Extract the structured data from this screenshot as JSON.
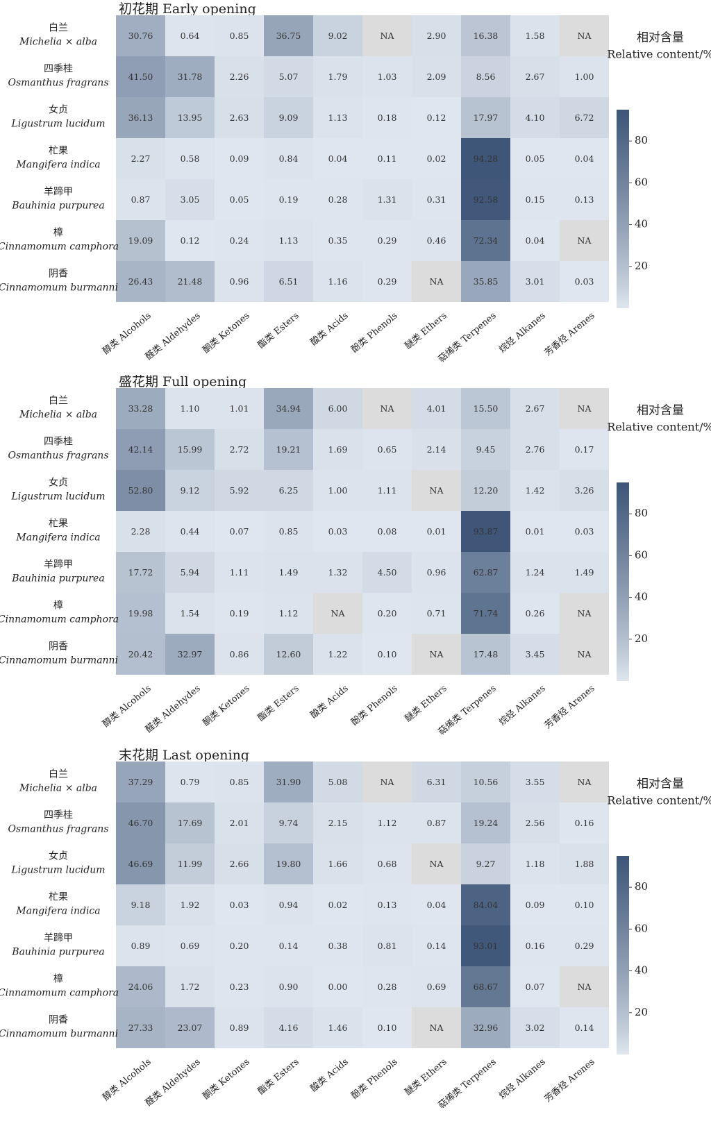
{
  "chart_data": [
    {
      "type": "heatmap",
      "title": "初花期 Early opening",
      "colorbar_title_cn": "相对含量",
      "colorbar_title_en": "Relative content/%",
      "colorbar_ticks": [
        20,
        40,
        60,
        80
      ],
      "colorbar_range": [
        0,
        95
      ],
      "rows_cn": [
        "白兰",
        "四季桂",
        "女贞",
        "杧果",
        "羊蹄甲",
        "樟",
        "阴香"
      ],
      "rows_latin": [
        "Michelia × alba",
        "Osmanthus fragrans",
        "Ligustrum lucidum",
        "Mangifera indica",
        "Bauhinia purpurea",
        "Cinnamomum camphora",
        "Cinnamomum burmanni"
      ],
      "columns": [
        "醇类 Alcohols",
        "醛类 Aldehydes",
        "酮类 Ketones",
        "酯类 Esters",
        "酸类 Acids",
        "酚类 Phenols",
        "醚类 Ethers",
        "萜烯类 Terpenes",
        "烷烃 Alkanes",
        "芳香烃 Arenes"
      ],
      "values": [
        [
          "30.76",
          "0.64",
          "0.85",
          "36.75",
          "9.02",
          "NA",
          "2.90",
          "16.38",
          "1.58",
          "NA"
        ],
        [
          "41.50",
          "31.78",
          "2.26",
          "5.07",
          "1.79",
          "1.03",
          "2.09",
          "8.56",
          "2.67",
          "1.00"
        ],
        [
          "36.13",
          "13.95",
          "2.63",
          "9.09",
          "1.13",
          "0.18",
          "0.12",
          "17.97",
          "4.10",
          "6.72"
        ],
        [
          "2.27",
          "0.58",
          "0.09",
          "0.84",
          "0.04",
          "0.11",
          "0.02",
          "94.28",
          "0.05",
          "0.04"
        ],
        [
          "0.87",
          "3.05",
          "0.05",
          "0.19",
          "0.28",
          "1.31",
          "0.31",
          "92.58",
          "0.15",
          "0.13"
        ],
        [
          "19.09",
          "0.12",
          "0.24",
          "1.13",
          "0.35",
          "0.29",
          "0.46",
          "72.34",
          "0.04",
          "NA"
        ],
        [
          "26.43",
          "21.48",
          "0.96",
          "6.51",
          "1.16",
          "0.29",
          "NA",
          "35.85",
          "3.01",
          "0.03"
        ]
      ]
    },
    {
      "type": "heatmap",
      "title": "盛花期 Full opening",
      "colorbar_title_cn": "相对含量",
      "colorbar_title_en": "Relative content/%",
      "colorbar_ticks": [
        20,
        40,
        60,
        80
      ],
      "colorbar_range": [
        0,
        95
      ],
      "rows_cn": [
        "白兰",
        "四季桂",
        "女贞",
        "杧果",
        "羊蹄甲",
        "樟",
        "阴香"
      ],
      "rows_latin": [
        "Michelia × alba",
        "Osmanthus fragrans",
        "Ligustrum lucidum",
        "Mangifera indica",
        "Bauhinia purpurea",
        "Cinnamomum camphora",
        "Cinnamomum burmanni"
      ],
      "columns": [
        "醇类 Alcohols",
        "醛类 Aldehydes",
        "酮类 Ketones",
        "酯类 Esters",
        "酸类 Acids",
        "酚类 Phenols",
        "醚类 Ethers",
        "萜烯类 Terpenes",
        "烷烃 Alkanes",
        "芳香烃 Arenes"
      ],
      "values": [
        [
          "33.28",
          "1.10",
          "1.01",
          "34.94",
          "6.00",
          "NA",
          "4.01",
          "15.50",
          "2.67",
          "NA"
        ],
        [
          "42.14",
          "15.99",
          "2.72",
          "19.21",
          "1.69",
          "0.65",
          "2.14",
          "9.45",
          "2.76",
          "0.17"
        ],
        [
          "52.80",
          "9.12",
          "5.92",
          "6.25",
          "1.00",
          "1.11",
          "NA",
          "12.20",
          "1.42",
          "3.26"
        ],
        [
          "2.28",
          "0.44",
          "0.07",
          "0.85",
          "0.03",
          "0.08",
          "0.01",
          "93.87",
          "0.01",
          "0.03"
        ],
        [
          "17.72",
          "5.94",
          "1.11",
          "1.49",
          "1.32",
          "4.50",
          "0.96",
          "62.87",
          "1.24",
          "1.49"
        ],
        [
          "19.98",
          "1.54",
          "0.19",
          "1.12",
          "NA",
          "0.20",
          "0.71",
          "71.74",
          "0.26",
          "NA"
        ],
        [
          "20.42",
          "32.97",
          "0.86",
          "12.60",
          "1.22",
          "0.10",
          "NA",
          "17.48",
          "3.45",
          "NA"
        ]
      ]
    },
    {
      "type": "heatmap",
      "title": "末花期  Last opening",
      "colorbar_title_cn": "相对含量",
      "colorbar_title_en": "Relative content/%",
      "colorbar_ticks": [
        20,
        40,
        60,
        80
      ],
      "colorbar_range": [
        0,
        95
      ],
      "rows_cn": [
        "白兰",
        "四季桂",
        "女贞",
        "杧果",
        "羊蹄甲",
        "樟",
        "阴香"
      ],
      "rows_latin": [
        "Michelia × alba",
        "Osmanthus fragrans",
        "Ligustrum lucidum",
        "Mangifera indica",
        "Bauhinia purpurea",
        "Cinnamomum camphora",
        "Cinnamomum burmanni"
      ],
      "columns": [
        "醇类 Alcohols",
        "醛类 Aldehydes",
        "酮类 Ketones",
        "酯类 Esters",
        "酸类 Acids",
        "酚类 Phenols",
        "醚类 Ethers",
        "萜烯类 Terpenes",
        "烷烃 Alkanes",
        "芳香烃 Arenes"
      ],
      "values": [
        [
          "37.29",
          "0.79",
          "0.85",
          "31.90",
          "5.08",
          "NA",
          "6.31",
          "10.56",
          "3.55",
          "NA"
        ],
        [
          "46.70",
          "17.69",
          "2.01",
          "9.74",
          "2.15",
          "1.12",
          "0.87",
          "19.24",
          "2.56",
          "0.16"
        ],
        [
          "46.69",
          "11.99",
          "2.66",
          "19.80",
          "1.66",
          "0.68",
          "NA",
          "9.27",
          "1.18",
          "1.88"
        ],
        [
          "9.18",
          "1.92",
          "0.03",
          "0.94",
          "0.02",
          "0.13",
          "0.04",
          "84.04",
          "0.09",
          "0.10"
        ],
        [
          "0.89",
          "0.69",
          "0.20",
          "0.14",
          "0.38",
          "0.81",
          "0.14",
          "93.01",
          "0.16",
          "0.29"
        ],
        [
          "24.06",
          "1.72",
          "0.23",
          "0.90",
          "0.00",
          "0.28",
          "0.69",
          "68.67",
          "0.07",
          "NA"
        ],
        [
          "27.33",
          "23.07",
          "0.89",
          "4.16",
          "1.46",
          "0.10",
          "NA",
          "32.96",
          "3.02",
          "0.14"
        ]
      ]
    }
  ],
  "colors": {
    "low": "#dfe6ef",
    "high": "#3d5577",
    "na": "#dcdcdc",
    "text": "#222222"
  }
}
